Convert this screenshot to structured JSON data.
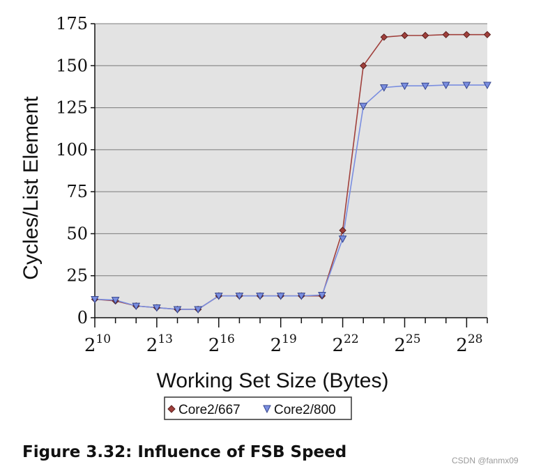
{
  "caption": "Figure 3.32: Influence of FSB Speed",
  "watermark": "CSDN @fanmx09",
  "chart_data": {
    "type": "line",
    "title": "",
    "xlabel": "Working Set Size (Bytes)",
    "ylabel": "Cycles/List Element",
    "x_exponents": [
      10,
      11,
      12,
      13,
      14,
      15,
      16,
      17,
      18,
      19,
      20,
      21,
      22,
      23,
      24,
      25,
      26,
      27,
      28,
      29
    ],
    "xlim": [
      10,
      29
    ],
    "ylim": [
      0,
      175
    ],
    "yticks": [
      "0",
      "25",
      "50",
      "75",
      "100",
      "125",
      "150",
      "175"
    ],
    "ytick_values": [
      0,
      25,
      50,
      75,
      100,
      125,
      150,
      175
    ],
    "xticks": [
      {
        "exp": 10,
        "base": "2",
        "sup": "10"
      },
      {
        "exp": 13,
        "base": "2",
        "sup": "13"
      },
      {
        "exp": 16,
        "base": "2",
        "sup": "16"
      },
      {
        "exp": 19,
        "base": "2",
        "sup": "19"
      },
      {
        "exp": 22,
        "base": "2",
        "sup": "22"
      },
      {
        "exp": 25,
        "base": "2",
        "sup": "25"
      },
      {
        "exp": 28,
        "base": "2",
        "sup": "28"
      }
    ],
    "grid": true,
    "legend_position": "bottom-center",
    "series": [
      {
        "name": "Core2/667",
        "color": "#a0403c",
        "marker": "diamond",
        "values": [
          11,
          10,
          7,
          6,
          5,
          5,
          13,
          13,
          13,
          13,
          13,
          13,
          52,
          150,
          167,
          168,
          168,
          168.5,
          168.5,
          168.5
        ]
      },
      {
        "name": "Core2/800",
        "color": "#7a8ee0",
        "marker": "triangle-down",
        "values": [
          11,
          10.5,
          7,
          6,
          5,
          5,
          13,
          13,
          13,
          13,
          13,
          13.5,
          47,
          126,
          137,
          138,
          138,
          138.5,
          138.5,
          138.5
        ]
      }
    ]
  }
}
